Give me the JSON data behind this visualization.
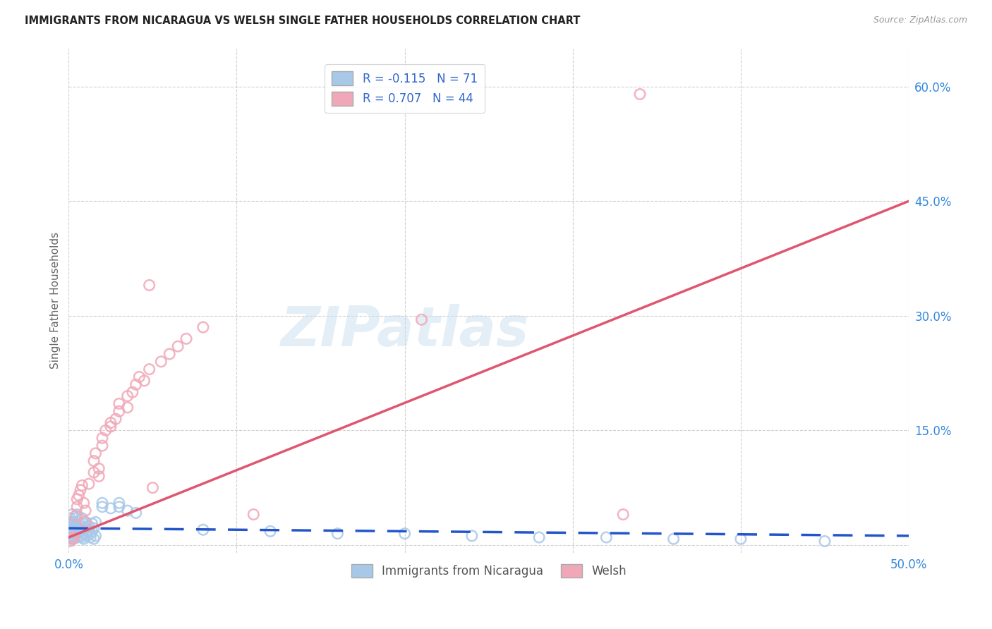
{
  "title": "IMMIGRANTS FROM NICARAGUA VS WELSH SINGLE FATHER HOUSEHOLDS CORRELATION CHART",
  "source": "Source: ZipAtlas.com",
  "xlabel_blue": "Immigrants from Nicaragua",
  "xlabel_pink": "Welsh",
  "ylabel": "Single Father Households",
  "xlim": [
    0.0,
    0.5
  ],
  "ylim": [
    -0.01,
    0.65
  ],
  "xticks": [
    0.0,
    0.1,
    0.2,
    0.3,
    0.4,
    0.5
  ],
  "yticks": [
    0.0,
    0.15,
    0.3,
    0.45,
    0.6
  ],
  "ytick_labels": [
    "",
    "15.0%",
    "30.0%",
    "45.0%",
    "60.0%"
  ],
  "xtick_labels": [
    "0.0%",
    "",
    "",
    "",
    "",
    "50.0%"
  ],
  "blue_R": -0.115,
  "blue_N": 71,
  "pink_R": 0.707,
  "pink_N": 44,
  "blue_color": "#a8c8e8",
  "pink_color": "#f0a8b8",
  "blue_line_color": "#2255cc",
  "pink_line_color": "#e05570",
  "watermark": "ZIPatlas",
  "blue_scatter": [
    [
      0.0,
      0.018
    ],
    [
      0.001,
      0.022
    ],
    [
      0.001,
      0.015
    ],
    [
      0.001,
      0.03
    ],
    [
      0.001,
      0.01
    ],
    [
      0.001,
      0.025
    ],
    [
      0.001,
      0.008
    ],
    [
      0.001,
      0.035
    ],
    [
      0.002,
      0.02
    ],
    [
      0.002,
      0.012
    ],
    [
      0.002,
      0.028
    ],
    [
      0.002,
      0.018
    ],
    [
      0.002,
      0.04
    ],
    [
      0.002,
      0.015
    ],
    [
      0.003,
      0.025
    ],
    [
      0.003,
      0.01
    ],
    [
      0.003,
      0.03
    ],
    [
      0.003,
      0.02
    ],
    [
      0.003,
      0.008
    ],
    [
      0.004,
      0.022
    ],
    [
      0.004,
      0.015
    ],
    [
      0.004,
      0.035
    ],
    [
      0.004,
      0.012
    ],
    [
      0.005,
      0.018
    ],
    [
      0.005,
      0.025
    ],
    [
      0.005,
      0.04
    ],
    [
      0.005,
      0.01
    ],
    [
      0.006,
      0.02
    ],
    [
      0.006,
      0.03
    ],
    [
      0.006,
      0.015
    ],
    [
      0.007,
      0.025
    ],
    [
      0.007,
      0.012
    ],
    [
      0.007,
      0.022
    ],
    [
      0.008,
      0.018
    ],
    [
      0.008,
      0.035
    ],
    [
      0.008,
      0.01
    ],
    [
      0.009,
      0.02
    ],
    [
      0.009,
      0.028
    ],
    [
      0.009,
      0.008
    ],
    [
      0.01,
      0.022
    ],
    [
      0.01,
      0.015
    ],
    [
      0.01,
      0.03
    ],
    [
      0.011,
      0.018
    ],
    [
      0.011,
      0.012
    ],
    [
      0.012,
      0.025
    ],
    [
      0.012,
      0.02
    ],
    [
      0.013,
      0.015
    ],
    [
      0.013,
      0.01
    ],
    [
      0.014,
      0.028
    ],
    [
      0.014,
      0.018
    ],
    [
      0.015,
      0.022
    ],
    [
      0.015,
      0.008
    ],
    [
      0.016,
      0.03
    ],
    [
      0.016,
      0.012
    ],
    [
      0.02,
      0.05
    ],
    [
      0.02,
      0.055
    ],
    [
      0.025,
      0.048
    ],
    [
      0.03,
      0.05
    ],
    [
      0.03,
      0.055
    ],
    [
      0.035,
      0.045
    ],
    [
      0.04,
      0.042
    ],
    [
      0.08,
      0.02
    ],
    [
      0.12,
      0.018
    ],
    [
      0.16,
      0.015
    ],
    [
      0.2,
      0.015
    ],
    [
      0.24,
      0.012
    ],
    [
      0.28,
      0.01
    ],
    [
      0.32,
      0.01
    ],
    [
      0.36,
      0.008
    ],
    [
      0.4,
      0.008
    ],
    [
      0.45,
      0.005
    ]
  ],
  "pink_scatter": [
    [
      0.001,
      0.005
    ],
    [
      0.002,
      0.008
    ],
    [
      0.003,
      0.01
    ],
    [
      0.004,
      0.038
    ],
    [
      0.005,
      0.05
    ],
    [
      0.005,
      0.06
    ],
    [
      0.006,
      0.065
    ],
    [
      0.007,
      0.072
    ],
    [
      0.008,
      0.078
    ],
    [
      0.009,
      0.055
    ],
    [
      0.01,
      0.045
    ],
    [
      0.01,
      0.03
    ],
    [
      0.012,
      0.08
    ],
    [
      0.015,
      0.095
    ],
    [
      0.015,
      0.11
    ],
    [
      0.016,
      0.12
    ],
    [
      0.018,
      0.09
    ],
    [
      0.018,
      0.1
    ],
    [
      0.02,
      0.14
    ],
    [
      0.02,
      0.13
    ],
    [
      0.022,
      0.15
    ],
    [
      0.025,
      0.155
    ],
    [
      0.025,
      0.16
    ],
    [
      0.028,
      0.165
    ],
    [
      0.03,
      0.175
    ],
    [
      0.03,
      0.185
    ],
    [
      0.035,
      0.18
    ],
    [
      0.035,
      0.195
    ],
    [
      0.038,
      0.2
    ],
    [
      0.04,
      0.21
    ],
    [
      0.042,
      0.22
    ],
    [
      0.045,
      0.215
    ],
    [
      0.048,
      0.23
    ],
    [
      0.05,
      0.075
    ],
    [
      0.055,
      0.24
    ],
    [
      0.06,
      0.25
    ],
    [
      0.065,
      0.26
    ],
    [
      0.07,
      0.27
    ],
    [
      0.08,
      0.285
    ],
    [
      0.11,
      0.04
    ],
    [
      0.21,
      0.295
    ],
    [
      0.33,
      0.04
    ],
    [
      0.34,
      0.59
    ],
    [
      0.048,
      0.34
    ]
  ],
  "blue_line": {
    "x0": 0.0,
    "x1": 0.5,
    "y0": 0.022,
    "y1": 0.012
  },
  "pink_line": {
    "x0": 0.0,
    "x1": 0.5,
    "y0": 0.01,
    "y1": 0.45
  }
}
